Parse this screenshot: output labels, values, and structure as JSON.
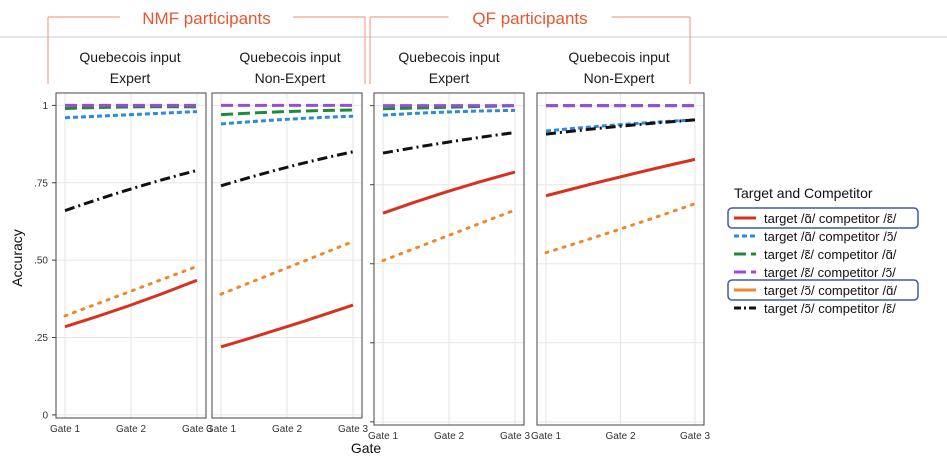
{
  "chart_data": {
    "type": "line",
    "groups": [
      {
        "title": "NMF participants",
        "panels": [
          0,
          1
        ]
      },
      {
        "title": "QF participants",
        "panels": [
          2,
          3
        ]
      }
    ],
    "panels": [
      {
        "strip": [
          "Quebecois input",
          "Expert"
        ],
        "values": [
          [
            0.285,
            0.355,
            0.435
          ],
          [
            0.96,
            0.97,
            0.98
          ],
          [
            0.99,
            0.995,
            0.995
          ],
          [
            1.0,
            1.0,
            1.0
          ],
          [
            0.32,
            0.4,
            0.48
          ],
          [
            0.66,
            0.73,
            0.79
          ]
        ]
      },
      {
        "strip": [
          "Quebecois input",
          "Non-Expert"
        ],
        "values": [
          [
            0.22,
            0.285,
            0.355
          ],
          [
            0.94,
            0.955,
            0.965
          ],
          [
            0.97,
            0.98,
            0.985
          ],
          [
            1.0,
            1.0,
            1.0
          ],
          [
            0.39,
            0.475,
            0.56
          ],
          [
            0.74,
            0.8,
            0.85
          ]
        ]
      },
      {
        "strip": [
          "Quebecois input",
          "Expert"
        ],
        "values": [
          [
            0.66,
            0.73,
            0.79
          ],
          [
            0.97,
            0.98,
            0.985
          ],
          [
            0.99,
            0.995,
            1.0
          ],
          [
            1.0,
            1.0,
            1.0
          ],
          [
            0.51,
            0.59,
            0.67
          ],
          [
            0.85,
            0.885,
            0.915
          ]
        ]
      },
      {
        "strip": [
          "Quebecois input",
          "Non-Expert"
        ],
        "values": [
          [
            0.715,
            0.775,
            0.83
          ],
          [
            0.92,
            0.94,
            0.955
          ],
          [
            1.0,
            1.0,
            1.0
          ],
          [
            1.0,
            1.0,
            1.0
          ],
          [
            0.535,
            0.61,
            0.69
          ],
          [
            0.91,
            0.935,
            0.955
          ]
        ]
      }
    ],
    "x": [
      "Gate 1",
      "Gate 2",
      "Gate 3"
    ],
    "y_ticks": [
      0,
      0.25,
      0.5,
      0.75,
      1
    ],
    "y_tick_labels": [
      "0",
      ".25",
      ".50",
      ".75",
      "1"
    ],
    "ylim": [
      -0.01,
      1.04
    ],
    "xlabel": "Gate",
    "ylabel": "Accuracy",
    "grid": true,
    "legend": {
      "title": "Target and Competitor",
      "position": "right",
      "highlighted": [
        0,
        4
      ]
    },
    "series": [
      {
        "name": "target /ɑ̃/ competitor /ɛ̃/",
        "color": "#d7321e",
        "dash": "solid"
      },
      {
        "name": "target /ɑ̃/ competitor /ɔ̃/",
        "color": "#2f8ad8",
        "dash": "short-dash"
      },
      {
        "name": "target /ɛ̃/ competitor /ɑ̃/",
        "color": "#1f8a3b",
        "dash": "long-dash"
      },
      {
        "name": "target /ɛ̃/ competitor /ɔ̃/",
        "color": "#9a4bdb",
        "dash": "long-dash"
      },
      {
        "name": "target /ɔ̃/ competitor /ɑ̃/",
        "color": "#f0872b",
        "dash": "dotted"
      },
      {
        "name": "target /ɔ̃/ competitor /ɛ̃/",
        "color": "#111111",
        "dash": "dash-dot"
      }
    ]
  }
}
